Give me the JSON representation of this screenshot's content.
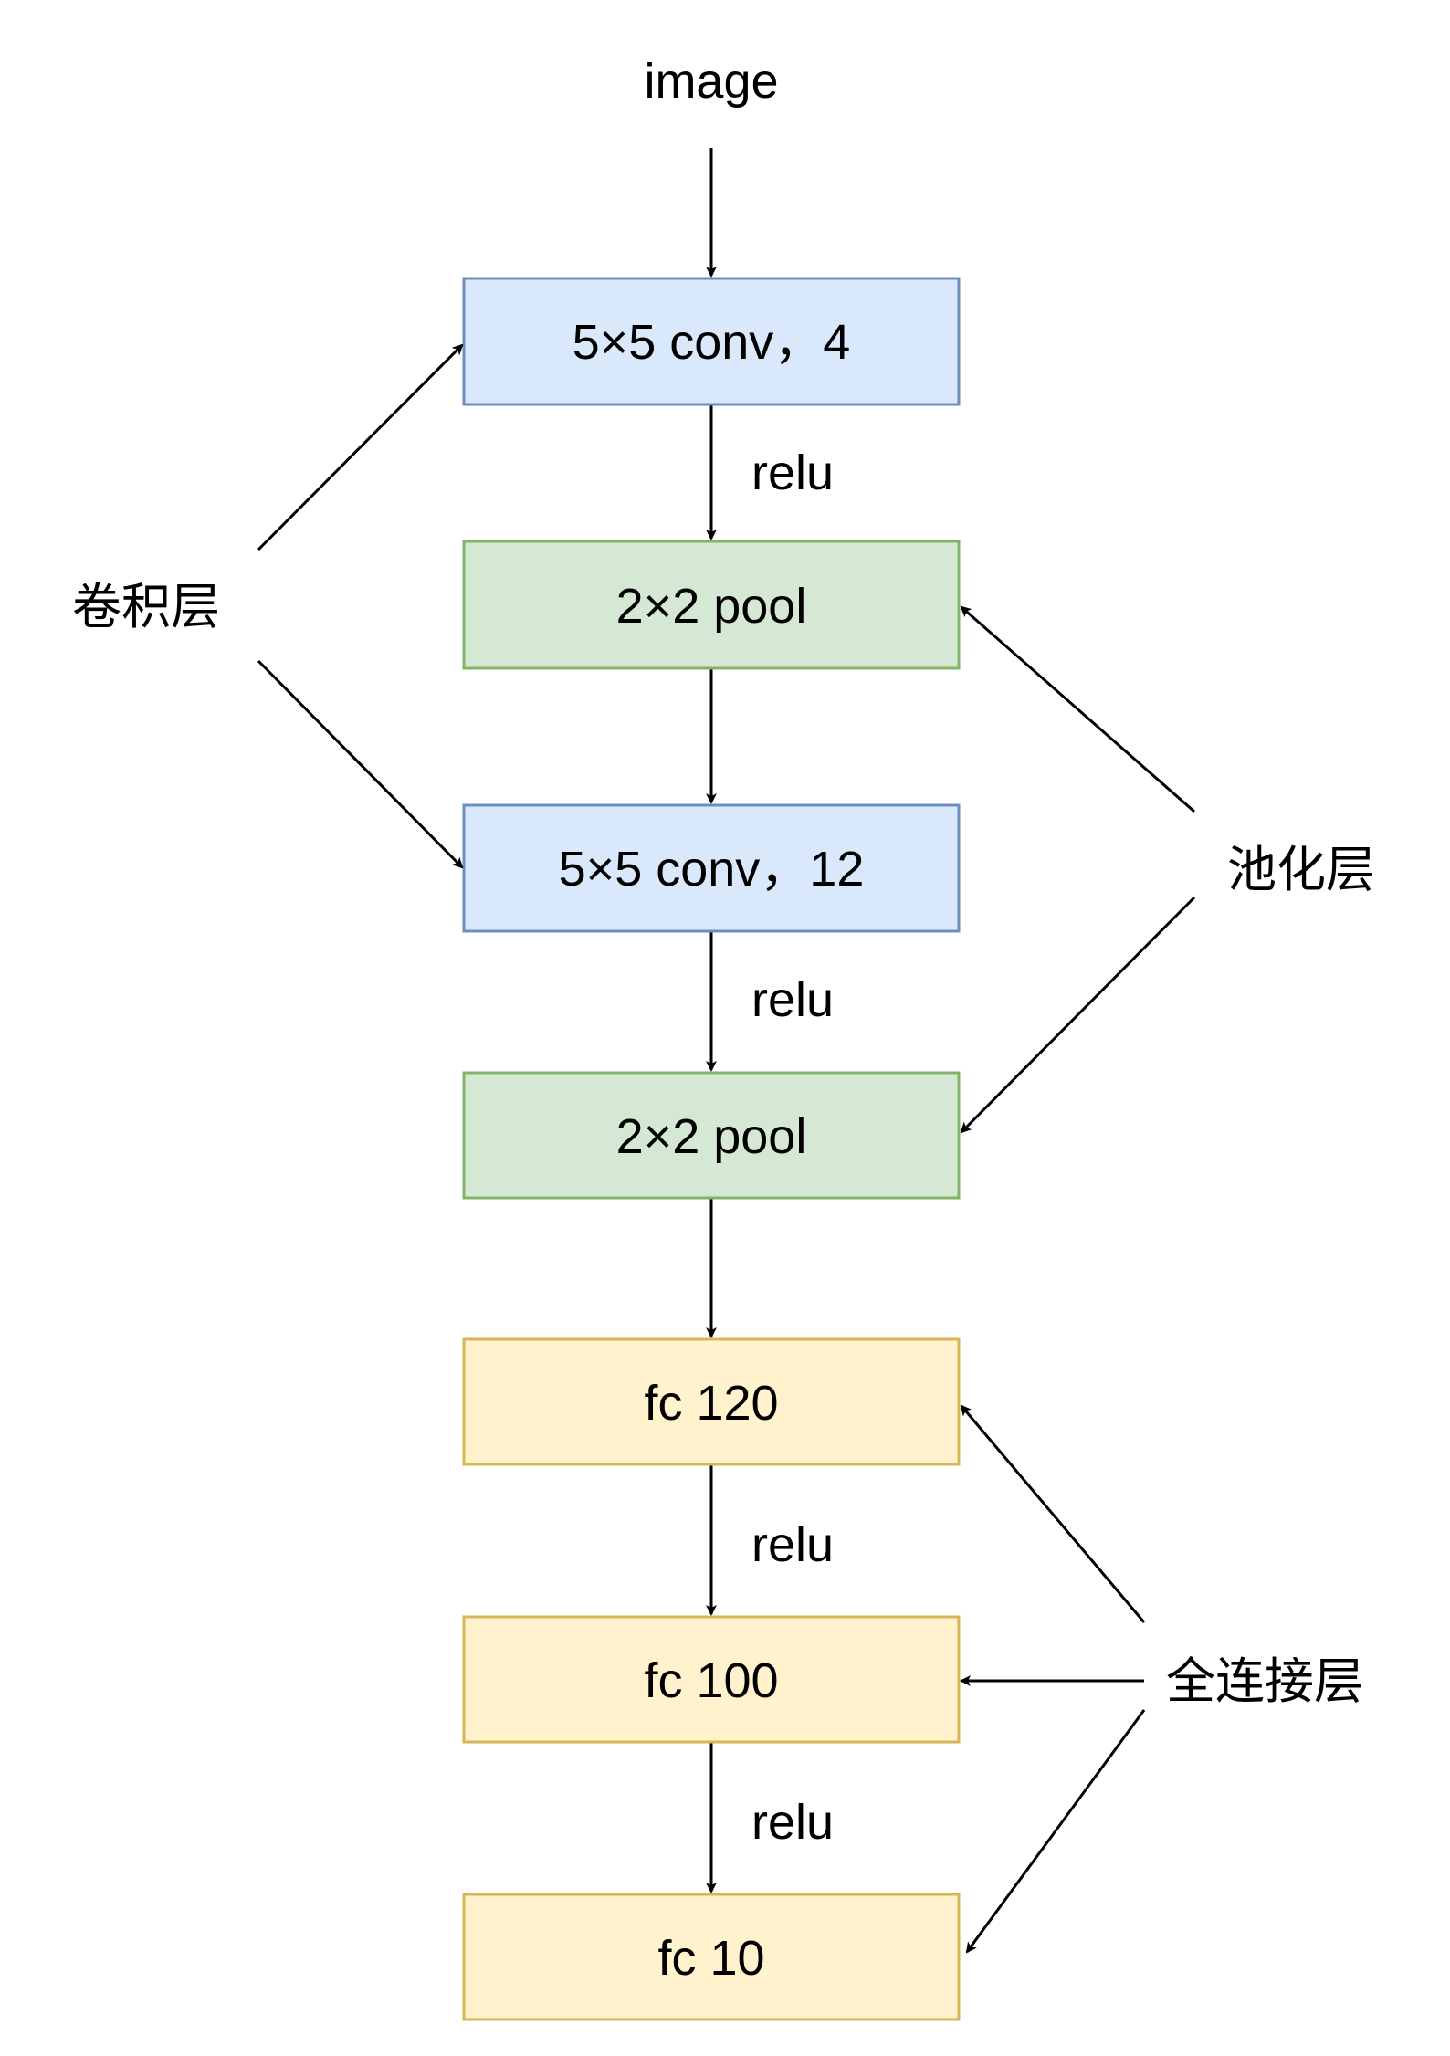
{
  "input_label": "image",
  "nodes": [
    {
      "id": "conv1",
      "label": "5×5 conv，4",
      "type": "conv"
    },
    {
      "id": "pool1",
      "label": "2×2 pool",
      "type": "pool"
    },
    {
      "id": "conv2",
      "label": "5×5 conv，12",
      "type": "conv"
    },
    {
      "id": "pool2",
      "label": "2×2 pool",
      "type": "pool"
    },
    {
      "id": "fc1",
      "label": "fc 120",
      "type": "fc"
    },
    {
      "id": "fc2",
      "label": "fc 100",
      "type": "fc"
    },
    {
      "id": "fc3",
      "label": "fc 10",
      "type": "fc"
    }
  ],
  "edge_labels": {
    "conv1_pool1": "relu",
    "conv2_pool2": "relu",
    "fc1_fc2": "relu",
    "fc2_fc3": "relu"
  },
  "groups": {
    "conv": {
      "label": "卷积层"
    },
    "pool": {
      "label": "池化层"
    },
    "fc": {
      "label": "全连接层"
    }
  },
  "colors": {
    "conv_fill": "#dae8fc",
    "conv_stroke": "#6c8ebf",
    "pool_fill": "#d5e8d4",
    "pool_stroke": "#82b366",
    "fc_fill": "#fff2cc",
    "fc_stroke": "#d6b656",
    "line": "#000000"
  }
}
